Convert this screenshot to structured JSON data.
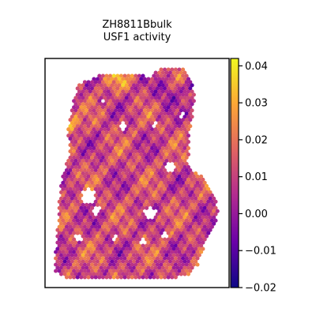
{
  "chart_data": {
    "type": "heatmap",
    "subtype": "spatial-hexbin",
    "title": [
      "ZH8811Bbulk",
      "USF1 activity"
    ],
    "xlabel": "",
    "ylabel": "",
    "frame_ticks": false,
    "colormap": "plasma",
    "colormap_stops": [
      "#0d0887",
      "#6a00a8",
      "#b12a90",
      "#e16462",
      "#fca636",
      "#f0f921"
    ],
    "colorbar": {
      "placement": "right",
      "vmin": -0.02,
      "vmax": 0.042,
      "ticks": [
        -0.02,
        -0.01,
        0.0,
        0.01,
        0.02,
        0.03,
        0.04
      ],
      "tick_labels": [
        "−0.02",
        "−0.01",
        "0.00",
        "0.01",
        "0.02",
        "0.03",
        "0.04"
      ]
    }
  }
}
